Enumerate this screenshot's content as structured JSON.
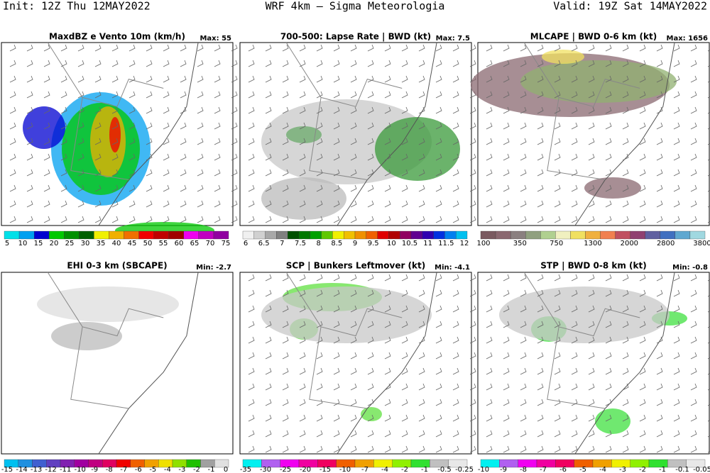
{
  "header": {
    "init": "Init: 12Z Thu 12MAY2022",
    "title": "WRF 4km — Sigma Meteorologia",
    "valid": "Valid: 19Z Sat 14MAY2022"
  },
  "panels": [
    {
      "title": "MaxdBZ e Vento 10m (km/h)",
      "stat": "Max: 55",
      "colorbar": {
        "labels": [
          "5",
          "10",
          "15",
          "20",
          "25",
          "30",
          "35",
          "40",
          "45",
          "50",
          "55",
          "60",
          "65",
          "70",
          "75"
        ],
        "colors": [
          "#00e0e8",
          "#00a0f0",
          "#0000d0",
          "#00c800",
          "#009000",
          "#006000",
          "#f0f000",
          "#f0b000",
          "#f07000",
          "#f00000",
          "#c00000",
          "#a00000",
          "#f000f0",
          "#c000c0",
          "#9000a0"
        ]
      }
    },
    {
      "title": "700-500: Lapse Rate | BWD (kt)",
      "stat": "Max: 7.5",
      "colorbar": {
        "labels": [
          "6",
          "6.5",
          "7",
          "7.5",
          "8",
          "8.5",
          "9",
          "9.5",
          "10",
          "10.5",
          "11",
          "11.5",
          "12"
        ],
        "colors": [
          "#f0f0f0",
          "#d0d0d0",
          "#a8a8a8",
          "#808080",
          "#005000",
          "#007800",
          "#00a000",
          "#60c800",
          "#f0f000",
          "#f0c000",
          "#f09000",
          "#f06000",
          "#e00000",
          "#b00000",
          "#900060",
          "#600090",
          "#3000b0",
          "#0030e0",
          "#0080f0",
          "#00c0f0"
        ]
      }
    },
    {
      "title": "MLCAPE | BWD 0-6 km (kt)",
      "stat": "Max: 1656",
      "colorbar": {
        "labels": [
          "100",
          "350",
          "750",
          "1300",
          "2000",
          "2800",
          "3800"
        ],
        "colors": [
          "#7a5a60",
          "#8a6870",
          "#8a8080",
          "#90a080",
          "#b0d090",
          "#f0f0c0",
          "#f0e060",
          "#f0b040",
          "#f08050",
          "#c05060",
          "#904070",
          "#6060a0",
          "#4070c0",
          "#60a8d0",
          "#a0d8e0"
        ]
      }
    },
    {
      "title": "EHI 0-3 km (SBCAPE)",
      "stat": "Min: -2.7",
      "colorbar": {
        "labels": [
          "-15",
          "-14",
          "-13",
          "-12",
          "-11",
          "-10",
          "-9",
          "-8",
          "-7",
          "-6",
          "-5",
          "-4",
          "-3",
          "-2",
          "-1",
          "0"
        ],
        "colors": [
          "#00c0f0",
          "#2090e0",
          "#4060d0",
          "#6040c0",
          "#8020b0",
          "#a000a0",
          "#c00080",
          "#e00060",
          "#f00000",
          "#f06000",
          "#f0a000",
          "#f0e000",
          "#90e000",
          "#20c000",
          "#a0a0a0",
          "#e0e0e0"
        ]
      }
    },
    {
      "title": "SCP | Bunkers Leftmover (kt)",
      "stat": "Min: -4.1",
      "colorbar": {
        "labels": [
          "-35",
          "-30",
          "-25",
          "-20",
          "-15",
          "-10",
          "-7",
          "-4",
          "-2",
          "-1",
          "-0.5",
          "-0.25"
        ],
        "colors": [
          "#00f0f0",
          "#b060f0",
          "#f000f0",
          "#f000a0",
          "#f00060",
          "#f06000",
          "#f0a000",
          "#f0f000",
          "#90f000",
          "#30e030",
          "#c0c0c0",
          "#e8e8e8"
        ]
      }
    },
    {
      "title": "STP | BWD 0-8 km (kt)",
      "stat": "Min: -0.8",
      "colorbar": {
        "labels": [
          "-10",
          "-9",
          "-8",
          "-7",
          "-6",
          "-5",
          "-4",
          "-3",
          "-2",
          "-1",
          "-0.1",
          "-0.05"
        ],
        "colors": [
          "#00f0f0",
          "#b060f0",
          "#f000f0",
          "#f000a0",
          "#f00060",
          "#f06000",
          "#f0a000",
          "#f0f000",
          "#90f000",
          "#30e030",
          "#c0c0c0",
          "#e8e8e8"
        ]
      }
    }
  ]
}
